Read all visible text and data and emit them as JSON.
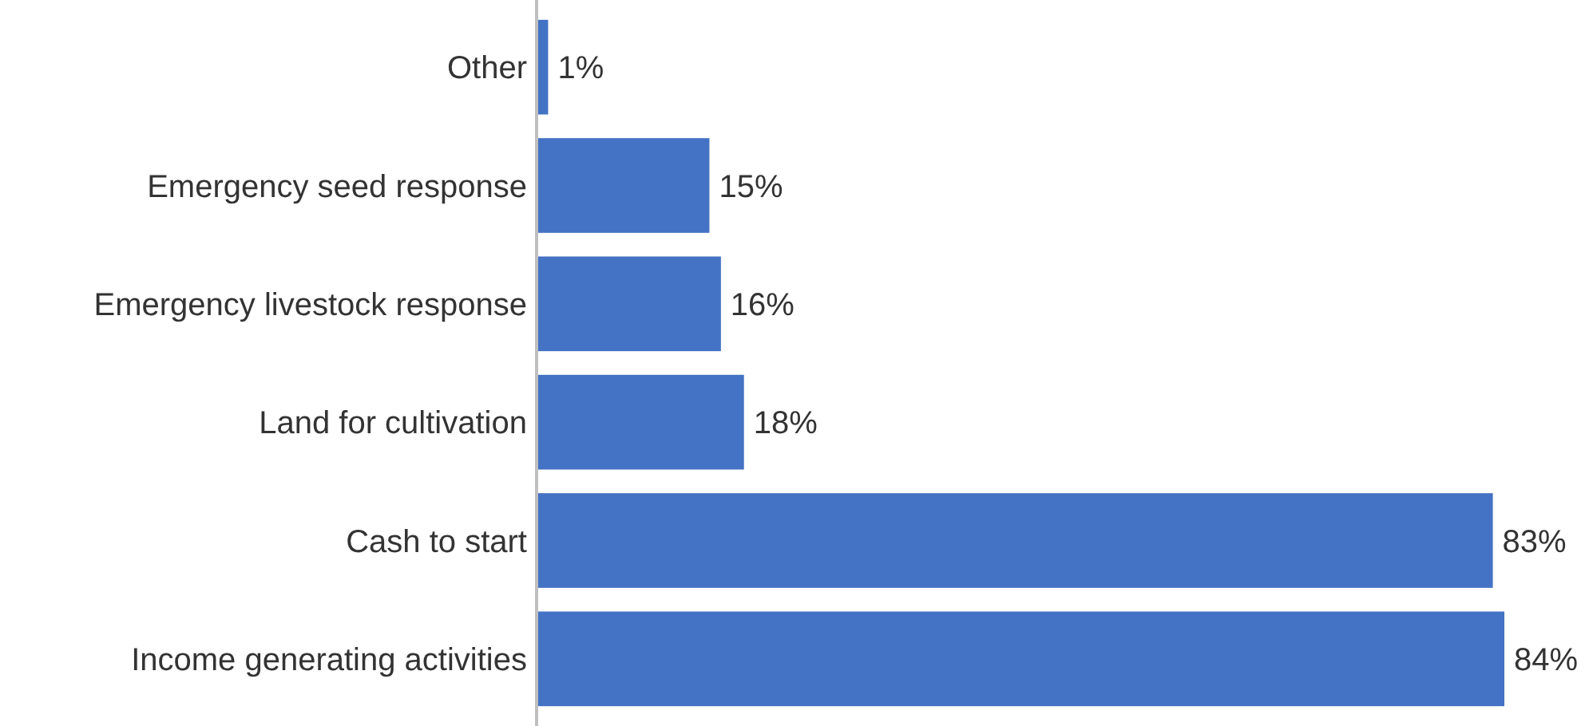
{
  "chart_data": {
    "type": "bar",
    "orientation": "horizontal",
    "categories": [
      "Other",
      "Emergency seed response",
      "Emergency livestock response",
      "Land for cultivation",
      "Cash to start",
      "Income generating activities"
    ],
    "values": [
      1,
      15,
      16,
      18,
      83,
      84
    ],
    "value_labels": [
      "1%",
      "15%",
      "16%",
      "18%",
      "83%",
      "84%"
    ],
    "color": "#4472c4"
  }
}
